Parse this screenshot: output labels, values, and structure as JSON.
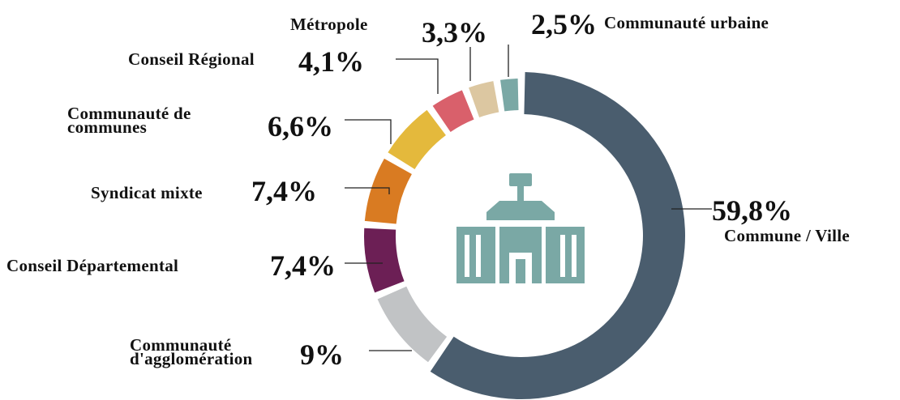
{
  "chart_data": {
    "type": "donut",
    "categories": [
      "Commune / Ville",
      "Communauté d'agglomération",
      "Conseil Départemental",
      "Syndicat mixte",
      "Communauté de communes",
      "Conseil Régional",
      "Métropole",
      "Communauté urbaine"
    ],
    "values": [
      59.8,
      9,
      7.4,
      7.4,
      6.6,
      4.1,
      3.3,
      2.5
    ],
    "value_labels": [
      "59,8%",
      "9%",
      "7,4%",
      "7,4%",
      "6,6%",
      "4,1%",
      "3,3%",
      "2,5%"
    ],
    "colors": [
      "#4a5d6e",
      "#c1c3c5",
      "#6c1f55",
      "#d97b22",
      "#e4b93c",
      "#d9606b",
      "#dcc7a1",
      "#7aa8a5"
    ]
  }
}
